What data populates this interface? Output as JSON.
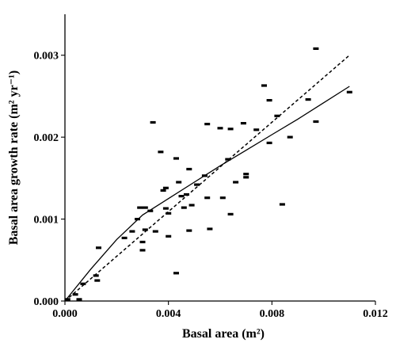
{
  "chart_data": {
    "type": "scatter",
    "title": "",
    "xlabel": "Basal area (m²)",
    "ylabel": "Basal area growth rate (m² yr⁻¹)",
    "xlim": [
      0.0,
      0.012
    ],
    "ylim": [
      0.0,
      0.0035
    ],
    "x_ticks": [
      0.0,
      0.004,
      0.008,
      0.012
    ],
    "x_tick_labels": [
      "0.000",
      "0.004",
      "0.008",
      "0.012"
    ],
    "y_ticks": [
      0.0,
      0.001,
      0.002,
      0.003
    ],
    "y_tick_labels": [
      "0.000",
      "0.001",
      "0.002",
      "0.003"
    ],
    "grid": false,
    "legend": "none",
    "marker": "dash",
    "points": [
      [
        0.0001,
        2e-05
      ],
      [
        0.0004,
        8e-05
      ],
      [
        0.00055,
        2e-05
      ],
      [
        0.0007,
        0.00021
      ],
      [
        0.0012,
        0.00031
      ],
      [
        0.00125,
        0.00025
      ],
      [
        0.0013,
        0.00065
      ],
      [
        0.0023,
        0.00077
      ],
      [
        0.0026,
        0.00085
      ],
      [
        0.0028,
        0.001
      ],
      [
        0.0029,
        0.00114
      ],
      [
        0.003,
        0.00062
      ],
      [
        0.003,
        0.00072
      ],
      [
        0.0031,
        0.00087
      ],
      [
        0.0031,
        0.00114
      ],
      [
        0.0033,
        0.0011
      ],
      [
        0.0034,
        0.00218
      ],
      [
        0.0035,
        0.00085
      ],
      [
        0.0037,
        0.00182
      ],
      [
        0.0038,
        0.00135
      ],
      [
        0.0039,
        0.00138
      ],
      [
        0.0039,
        0.00113
      ],
      [
        0.004,
        0.00107
      ],
      [
        0.004,
        0.00079
      ],
      [
        0.0043,
        0.00034
      ],
      [
        0.0043,
        0.00174
      ],
      [
        0.0044,
        0.00145
      ],
      [
        0.0045,
        0.00128
      ],
      [
        0.0046,
        0.00114
      ],
      [
        0.0047,
        0.0013
      ],
      [
        0.0048,
        0.00086
      ],
      [
        0.0048,
        0.00161
      ],
      [
        0.0049,
        0.00117
      ],
      [
        0.0051,
        0.00142
      ],
      [
        0.0054,
        0.00153
      ],
      [
        0.0055,
        0.00126
      ],
      [
        0.0055,
        0.00216
      ],
      [
        0.0056,
        0.00088
      ],
      [
        0.006,
        0.00211
      ],
      [
        0.0061,
        0.00126
      ],
      [
        0.0063,
        0.00173
      ],
      [
        0.0064,
        0.00106
      ],
      [
        0.0064,
        0.0021
      ],
      [
        0.0066,
        0.00145
      ],
      [
        0.0069,
        0.00217
      ],
      [
        0.007,
        0.00151
      ],
      [
        0.007,
        0.00155
      ],
      [
        0.0074,
        0.00209
      ],
      [
        0.0077,
        0.00263
      ],
      [
        0.0079,
        0.00193
      ],
      [
        0.0079,
        0.00245
      ],
      [
        0.0082,
        0.00226
      ],
      [
        0.0084,
        0.00118
      ],
      [
        0.0087,
        0.002
      ],
      [
        0.0094,
        0.00246
      ],
      [
        0.0097,
        0.00219
      ],
      [
        0.0097,
        0.00308
      ],
      [
        0.011,
        0.00255
      ]
    ],
    "fit_solid": [
      [
        0.0,
        0.0
      ],
      [
        0.001,
        0.00039
      ],
      [
        0.002,
        0.00075
      ],
      [
        0.003,
        0.00105
      ],
      [
        0.004,
        0.00125
      ],
      [
        0.005,
        0.00145
      ],
      [
        0.006,
        0.00165
      ],
      [
        0.007,
        0.00184
      ],
      [
        0.008,
        0.00203
      ],
      [
        0.009,
        0.00222
      ],
      [
        0.01,
        0.00242
      ],
      [
        0.011,
        0.00262
      ]
    ],
    "fit_dashed": [
      [
        0.0,
        0.0
      ],
      [
        0.011,
        0.003
      ]
    ]
  }
}
